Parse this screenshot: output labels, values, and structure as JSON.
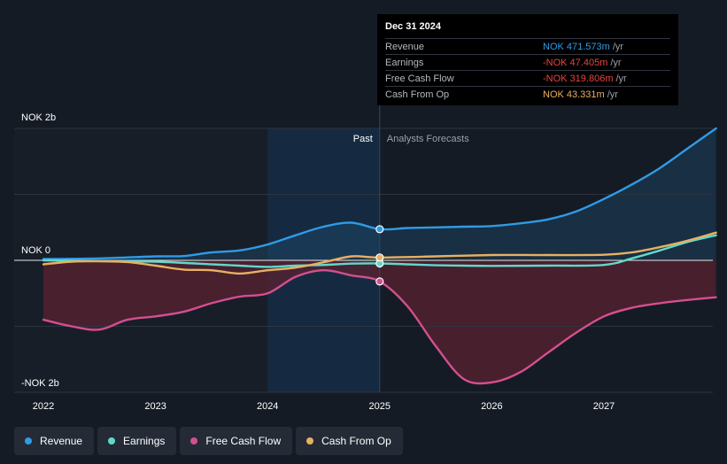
{
  "chart_data": {
    "type": "line",
    "currency": "NOK",
    "y_axis_labels": [
      "NOK 2b",
      "NOK 0",
      "-NOK 2b"
    ],
    "ylim": [
      -2000,
      2000
    ],
    "xlim": [
      2021.8,
      2028.0
    ],
    "x_ticks": [
      "2022",
      "2023",
      "2024",
      "2025",
      "2026",
      "2027"
    ],
    "x_tick_values": [
      2022,
      2023,
      2024,
      2025,
      2026,
      2027
    ],
    "past_label": "Past",
    "forecast_label": "Analysts Forecasts",
    "divider_x": 2025.0,
    "shade_start_x": 2024.0,
    "series": [
      {
        "name": "Revenue",
        "color": "#2f9be6",
        "points": [
          [
            2022.0,
            20
          ],
          [
            2022.5,
            30
          ],
          [
            2023.0,
            60
          ],
          [
            2023.25,
            65
          ],
          [
            2023.5,
            120
          ],
          [
            2023.75,
            150
          ],
          [
            2024.0,
            240
          ],
          [
            2024.25,
            380
          ],
          [
            2024.5,
            510
          ],
          [
            2024.75,
            570
          ],
          [
            2025.0,
            472
          ],
          [
            2025.25,
            490
          ],
          [
            2025.5,
            500
          ],
          [
            2025.75,
            510
          ],
          [
            2026.0,
            520
          ],
          [
            2026.25,
            560
          ],
          [
            2026.5,
            620
          ],
          [
            2026.75,
            740
          ],
          [
            2027.0,
            930
          ],
          [
            2027.25,
            1150
          ],
          [
            2027.5,
            1400
          ],
          [
            2027.75,
            1700
          ],
          [
            2028.0,
            2000
          ]
        ]
      },
      {
        "name": "Earnings",
        "color": "#5fd9cc",
        "points": [
          [
            2022.0,
            0
          ],
          [
            2022.5,
            -10
          ],
          [
            2023.0,
            -20
          ],
          [
            2023.5,
            -60
          ],
          [
            2023.75,
            -80
          ],
          [
            2024.0,
            -100
          ],
          [
            2024.25,
            -80
          ],
          [
            2024.5,
            -70
          ],
          [
            2024.75,
            -50
          ],
          [
            2025.0,
            -47
          ],
          [
            2025.25,
            -60
          ],
          [
            2025.5,
            -75
          ],
          [
            2025.75,
            -80
          ],
          [
            2026.0,
            -85
          ],
          [
            2026.5,
            -80
          ],
          [
            2027.0,
            -70
          ],
          [
            2027.25,
            30
          ],
          [
            2027.5,
            150
          ],
          [
            2027.75,
            280
          ],
          [
            2028.0,
            380
          ]
        ]
      },
      {
        "name": "Free Cash Flow",
        "color": "#d44f8f",
        "points": [
          [
            2022.0,
            -900
          ],
          [
            2022.25,
            -1000
          ],
          [
            2022.5,
            -1050
          ],
          [
            2022.75,
            -900
          ],
          [
            2023.0,
            -850
          ],
          [
            2023.25,
            -780
          ],
          [
            2023.5,
            -650
          ],
          [
            2023.75,
            -550
          ],
          [
            2024.0,
            -500
          ],
          [
            2024.25,
            -250
          ],
          [
            2024.5,
            -150
          ],
          [
            2024.75,
            -230
          ],
          [
            2025.0,
            -320
          ],
          [
            2025.25,
            -700
          ],
          [
            2025.5,
            -1300
          ],
          [
            2025.75,
            -1800
          ],
          [
            2026.0,
            -1850
          ],
          [
            2026.25,
            -1700
          ],
          [
            2026.5,
            -1400
          ],
          [
            2026.75,
            -1100
          ],
          [
            2027.0,
            -850
          ],
          [
            2027.25,
            -720
          ],
          [
            2027.5,
            -650
          ],
          [
            2027.75,
            -600
          ],
          [
            2028.0,
            -560
          ]
        ]
      },
      {
        "name": "Cash From Op",
        "color": "#e8b062",
        "points": [
          [
            2022.0,
            -60
          ],
          [
            2022.25,
            -20
          ],
          [
            2022.5,
            -15
          ],
          [
            2022.75,
            -25
          ],
          [
            2023.0,
            -80
          ],
          [
            2023.25,
            -140
          ],
          [
            2023.5,
            -150
          ],
          [
            2023.75,
            -200
          ],
          [
            2024.0,
            -150
          ],
          [
            2024.25,
            -110
          ],
          [
            2024.5,
            -30
          ],
          [
            2024.75,
            60
          ],
          [
            2025.0,
            43
          ],
          [
            2025.5,
            60
          ],
          [
            2026.0,
            80
          ],
          [
            2026.5,
            80
          ],
          [
            2027.0,
            85
          ],
          [
            2027.25,
            120
          ],
          [
            2027.5,
            200
          ],
          [
            2027.75,
            300
          ],
          [
            2028.0,
            420
          ]
        ]
      }
    ]
  },
  "tooltip": {
    "date": "Dec 31 2024",
    "rows": [
      {
        "label": "Revenue",
        "value": "NOK 471.573m",
        "unit": "/yr",
        "color": "#2f9be6"
      },
      {
        "label": "Earnings",
        "value": "-NOK 47.405m",
        "unit": "/yr",
        "color": "#e8433f"
      },
      {
        "label": "Free Cash Flow",
        "value": "-NOK 319.806m",
        "unit": "/yr",
        "color": "#e8433f"
      },
      {
        "label": "Cash From Op",
        "value": "NOK 43.331m",
        "unit": "/yr",
        "color": "#e8b062"
      }
    ]
  },
  "legend": [
    {
      "label": "Revenue",
      "color": "#2f9be6"
    },
    {
      "label": "Earnings",
      "color": "#5fd9cc"
    },
    {
      "label": "Free Cash Flow",
      "color": "#d44f8f"
    },
    {
      "label": "Cash From Op",
      "color": "#e8b062"
    }
  ]
}
